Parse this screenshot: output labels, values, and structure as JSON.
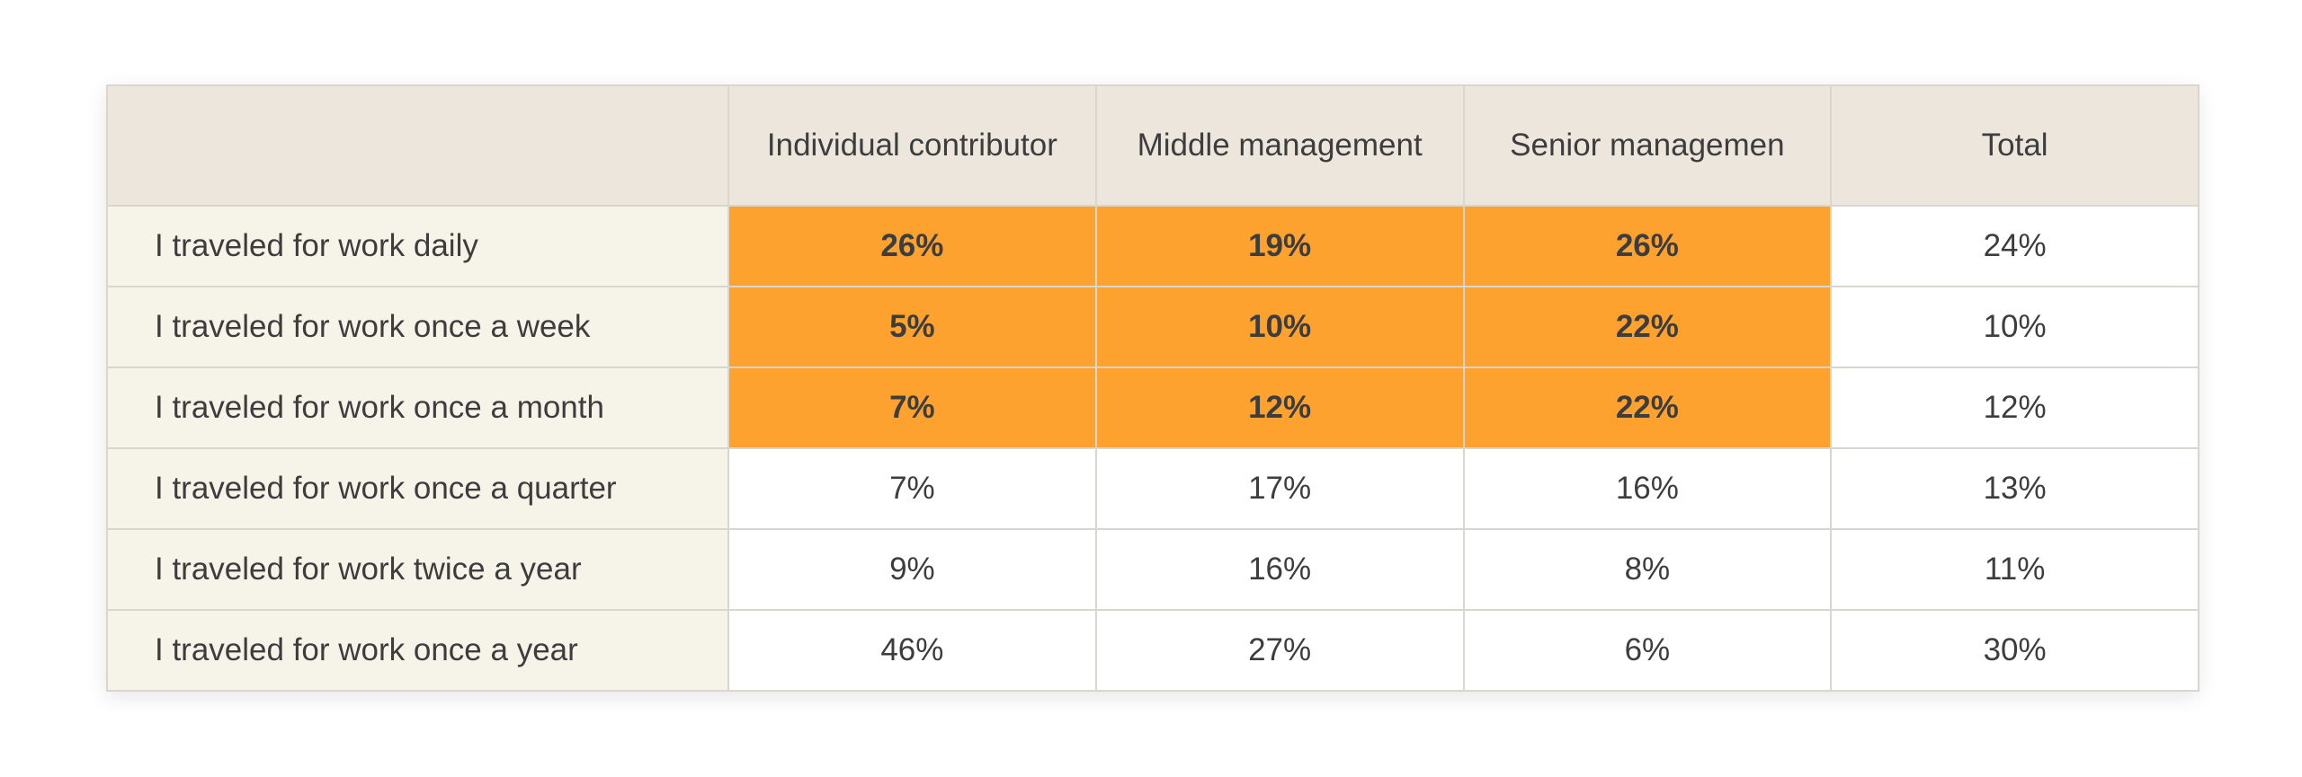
{
  "colors": {
    "header_bg": "#ede6dd",
    "row_label_bg": "#f6f3e9",
    "highlight_bg": "#fda22f",
    "cell_bg": "#ffffff",
    "border": "#d9d6d0",
    "text": "#3d3d3d"
  },
  "chart_data": {
    "type": "table",
    "columns": [
      "",
      "Individual contributor",
      "Middle management",
      "Senior managemen",
      "Total"
    ],
    "rows": [
      {
        "label": "I traveled for work daily",
        "cells": [
          "26%",
          "19%",
          "26%",
          "24%"
        ],
        "highlight": [
          true,
          true,
          true,
          false
        ]
      },
      {
        "label": "I traveled for work once a week",
        "cells": [
          "5%",
          "10%",
          "22%",
          "10%"
        ],
        "highlight": [
          true,
          true,
          true,
          false
        ]
      },
      {
        "label": "I traveled for work once a month",
        "cells": [
          "7%",
          "12%",
          "22%",
          "12%"
        ],
        "highlight": [
          true,
          true,
          true,
          false
        ]
      },
      {
        "label": "I traveled for work once a quarter",
        "cells": [
          "7%",
          "17%",
          "16%",
          "13%"
        ],
        "highlight": [
          false,
          false,
          false,
          false
        ]
      },
      {
        "label": "I traveled for work twice a year",
        "cells": [
          "9%",
          "16%",
          "8%",
          "11%"
        ],
        "highlight": [
          false,
          false,
          false,
          false
        ]
      },
      {
        "label": "I traveled for work once a year",
        "cells": [
          "46%",
          "27%",
          "6%",
          "30%"
        ],
        "highlight": [
          false,
          false,
          false,
          false
        ]
      }
    ]
  }
}
